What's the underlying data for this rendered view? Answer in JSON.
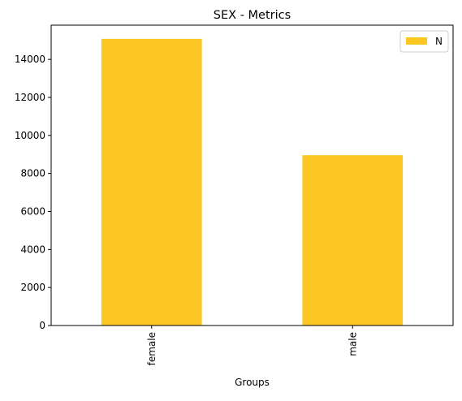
{
  "chart_data": {
    "type": "bar",
    "title": "SEX - Metrics",
    "xlabel": "Groups",
    "ylabel": "",
    "categories": [
      "female",
      "male"
    ],
    "series": [
      {
        "name": "N",
        "values": [
          15080,
          8960
        ],
        "color": "#fcc723"
      }
    ],
    "ylim": [
      0,
      15800
    ],
    "yticks": [
      0,
      2000,
      4000,
      6000,
      8000,
      10000,
      12000,
      14000
    ],
    "grid": false,
    "legend_position": "top-right"
  }
}
